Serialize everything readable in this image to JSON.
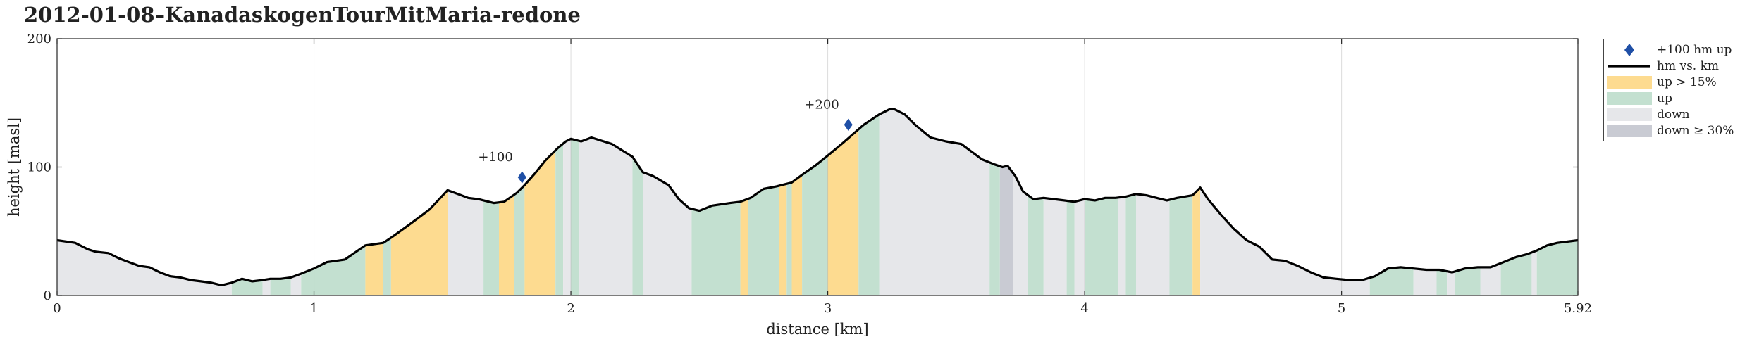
{
  "title": "2012-01-08–KanadaskogenTourMitMaria-redone",
  "colors": {
    "up_steep": "#fddb90",
    "up": "#c3e0d0",
    "down": "#e6e7ea",
    "down_steep": "#c9cbd3",
    "line": "#000000",
    "marker": "#1f4fa6"
  },
  "legend": [
    {
      "key": "marker",
      "label": "+100 hm up"
    },
    {
      "key": "line",
      "label": "hm vs. km"
    },
    {
      "key": "up_steep",
      "label": "up > 15%"
    },
    {
      "key": "up",
      "label": "up"
    },
    {
      "key": "down",
      "label": "down"
    },
    {
      "key": "down_steep",
      "label": "down ≥ 30%"
    }
  ],
  "chart_data": {
    "type": "area",
    "title": "2012-01-08–KanadaskogenTourMitMaria-redone",
    "xlabel": "distance [km]",
    "ylabel": "height [masl]",
    "xlim": [
      0,
      5.92
    ],
    "ylim": [
      0,
      200
    ],
    "xticks": [
      0,
      1,
      2,
      3,
      4,
      5,
      5.92
    ],
    "xtick_labels": [
      "0",
      "1",
      "2",
      "3",
      "4",
      "5",
      "5.92"
    ],
    "yticks": [
      0,
      100,
      200
    ],
    "ytick_labels": [
      "0",
      "100",
      "200"
    ],
    "grid": true,
    "legend_position": "outside-right",
    "series": [
      {
        "name": "hm vs. km",
        "x": [
          0,
          0.07,
          0.12,
          0.15,
          0.2,
          0.24,
          0.28,
          0.32,
          0.36,
          0.4,
          0.44,
          0.48,
          0.52,
          0.56,
          0.6,
          0.64,
          0.68,
          0.72,
          0.76,
          0.8,
          0.83,
          0.87,
          0.91,
          0.95,
          1.0,
          1.05,
          1.12,
          1.2,
          1.27,
          1.3,
          1.37,
          1.45,
          1.52,
          1.56,
          1.6,
          1.64,
          1.7,
          1.74,
          1.79,
          1.82,
          1.86,
          1.9,
          1.95,
          1.98,
          2.0,
          2.04,
          2.08,
          2.16,
          2.24,
          2.28,
          2.32,
          2.38,
          2.42,
          2.46,
          2.5,
          2.55,
          2.62,
          2.66,
          2.7,
          2.75,
          2.8,
          2.86,
          2.9,
          2.95,
          3.0,
          3.06,
          3.1,
          3.14,
          3.2,
          3.24,
          3.26,
          3.3,
          3.34,
          3.4,
          3.46,
          3.52,
          3.56,
          3.6,
          3.65,
          3.68,
          3.7,
          3.73,
          3.76,
          3.8,
          3.84,
          3.88,
          3.92,
          3.96,
          4.0,
          4.04,
          4.08,
          4.12,
          4.16,
          4.2,
          4.24,
          4.28,
          4.32,
          4.36,
          4.42,
          4.45,
          4.48,
          4.53,
          4.58,
          4.63,
          4.68,
          4.73,
          4.78,
          4.83,
          4.88,
          4.93,
          4.98,
          5.03,
          5.08,
          5.13,
          5.18,
          5.23,
          5.28,
          5.33,
          5.38,
          5.43,
          5.48,
          5.53,
          5.58,
          5.63,
          5.68,
          5.72,
          5.76,
          5.8,
          5.84,
          5.88,
          5.92
        ],
        "y": [
          43,
          41,
          36,
          34,
          33,
          29,
          26,
          23,
          22,
          18,
          15,
          14,
          12,
          11,
          10,
          8,
          10,
          13,
          11,
          12,
          13,
          13,
          14,
          17,
          21,
          26,
          28,
          39,
          41,
          45,
          55,
          67,
          82,
          79,
          76,
          75,
          72,
          73,
          80,
          86,
          95,
          105,
          115,
          120,
          122,
          120,
          123,
          118,
          108,
          96,
          93,
          86,
          75,
          68,
          66,
          70,
          72,
          73,
          76,
          83,
          85,
          88,
          94,
          101,
          109,
          119,
          126,
          133,
          141,
          145,
          145,
          141,
          133,
          123,
          120,
          118,
          112,
          106,
          102,
          100,
          101,
          93,
          81,
          75,
          76,
          75,
          74,
          73,
          75,
          74,
          76,
          76,
          77,
          79,
          78,
          76,
          74,
          76,
          78,
          84,
          75,
          63,
          52,
          43,
          38,
          28,
          27,
          23,
          18,
          14,
          13,
          12,
          12,
          15,
          21,
          22,
          21,
          20,
          20,
          18,
          21,
          22,
          22,
          26,
          30,
          32,
          35,
          39,
          41,
          42,
          43
        ]
      }
    ],
    "segments": [
      {
        "from": 0,
        "to": 0.68,
        "cls": "down"
      },
      {
        "from": 0.68,
        "to": 0.8,
        "cls": "up"
      },
      {
        "from": 0.8,
        "to": 0.83,
        "cls": "down"
      },
      {
        "from": 0.83,
        "to": 0.91,
        "cls": "up"
      },
      {
        "from": 0.91,
        "to": 0.95,
        "cls": "down"
      },
      {
        "from": 0.95,
        "to": 1.2,
        "cls": "up"
      },
      {
        "from": 1.2,
        "to": 1.27,
        "cls": "up_steep"
      },
      {
        "from": 1.27,
        "to": 1.3,
        "cls": "up"
      },
      {
        "from": 1.3,
        "to": 1.52,
        "cls": "up_steep"
      },
      {
        "from": 1.52,
        "to": 1.66,
        "cls": "down"
      },
      {
        "from": 1.66,
        "to": 1.72,
        "cls": "up"
      },
      {
        "from": 1.72,
        "to": 1.78,
        "cls": "up_steep"
      },
      {
        "from": 1.78,
        "to": 1.82,
        "cls": "up"
      },
      {
        "from": 1.82,
        "to": 1.94,
        "cls": "up_steep"
      },
      {
        "from": 1.94,
        "to": 1.97,
        "cls": "up"
      },
      {
        "from": 1.97,
        "to": 2.0,
        "cls": "down"
      },
      {
        "from": 2.0,
        "to": 2.03,
        "cls": "up"
      },
      {
        "from": 2.03,
        "to": 2.24,
        "cls": "down"
      },
      {
        "from": 2.24,
        "to": 2.28,
        "cls": "up"
      },
      {
        "from": 2.28,
        "to": 2.47,
        "cls": "down"
      },
      {
        "from": 2.47,
        "to": 2.66,
        "cls": "up"
      },
      {
        "from": 2.66,
        "to": 2.69,
        "cls": "up_steep"
      },
      {
        "from": 2.69,
        "to": 2.81,
        "cls": "up"
      },
      {
        "from": 2.81,
        "to": 2.84,
        "cls": "up_steep"
      },
      {
        "from": 2.84,
        "to": 2.86,
        "cls": "up"
      },
      {
        "from": 2.86,
        "to": 2.9,
        "cls": "up_steep"
      },
      {
        "from": 2.9,
        "to": 3.0,
        "cls": "up"
      },
      {
        "from": 3.0,
        "to": 3.12,
        "cls": "up_steep"
      },
      {
        "from": 3.12,
        "to": 3.2,
        "cls": "up"
      },
      {
        "from": 3.2,
        "to": 3.63,
        "cls": "down"
      },
      {
        "from": 3.63,
        "to": 3.67,
        "cls": "up"
      },
      {
        "from": 3.67,
        "to": 3.72,
        "cls": "down_steep"
      },
      {
        "from": 3.72,
        "to": 3.78,
        "cls": "down"
      },
      {
        "from": 3.78,
        "to": 3.84,
        "cls": "up"
      },
      {
        "from": 3.84,
        "to": 3.93,
        "cls": "down"
      },
      {
        "from": 3.93,
        "to": 3.96,
        "cls": "up"
      },
      {
        "from": 3.96,
        "to": 4.0,
        "cls": "down"
      },
      {
        "from": 4.0,
        "to": 4.13,
        "cls": "up"
      },
      {
        "from": 4.13,
        "to": 4.16,
        "cls": "down"
      },
      {
        "from": 4.16,
        "to": 4.2,
        "cls": "up"
      },
      {
        "from": 4.2,
        "to": 4.33,
        "cls": "down"
      },
      {
        "from": 4.33,
        "to": 4.42,
        "cls": "up"
      },
      {
        "from": 4.42,
        "to": 4.45,
        "cls": "up_steep"
      },
      {
        "from": 4.45,
        "to": 5.11,
        "cls": "down"
      },
      {
        "from": 5.11,
        "to": 5.28,
        "cls": "up"
      },
      {
        "from": 5.28,
        "to": 5.37,
        "cls": "down"
      },
      {
        "from": 5.37,
        "to": 5.41,
        "cls": "up"
      },
      {
        "from": 5.41,
        "to": 5.44,
        "cls": "down"
      },
      {
        "from": 5.44,
        "to": 5.54,
        "cls": "up"
      },
      {
        "from": 5.54,
        "to": 5.62,
        "cls": "down"
      },
      {
        "from": 5.62,
        "to": 5.74,
        "cls": "up"
      },
      {
        "from": 5.74,
        "to": 5.76,
        "cls": "down"
      },
      {
        "from": 5.76,
        "to": 5.92,
        "cls": "up"
      }
    ],
    "markers": [
      {
        "label": "+100",
        "x": 1.81,
        "y": 92
      },
      {
        "label": "+200",
        "x": 3.08,
        "y": 133
      }
    ]
  }
}
